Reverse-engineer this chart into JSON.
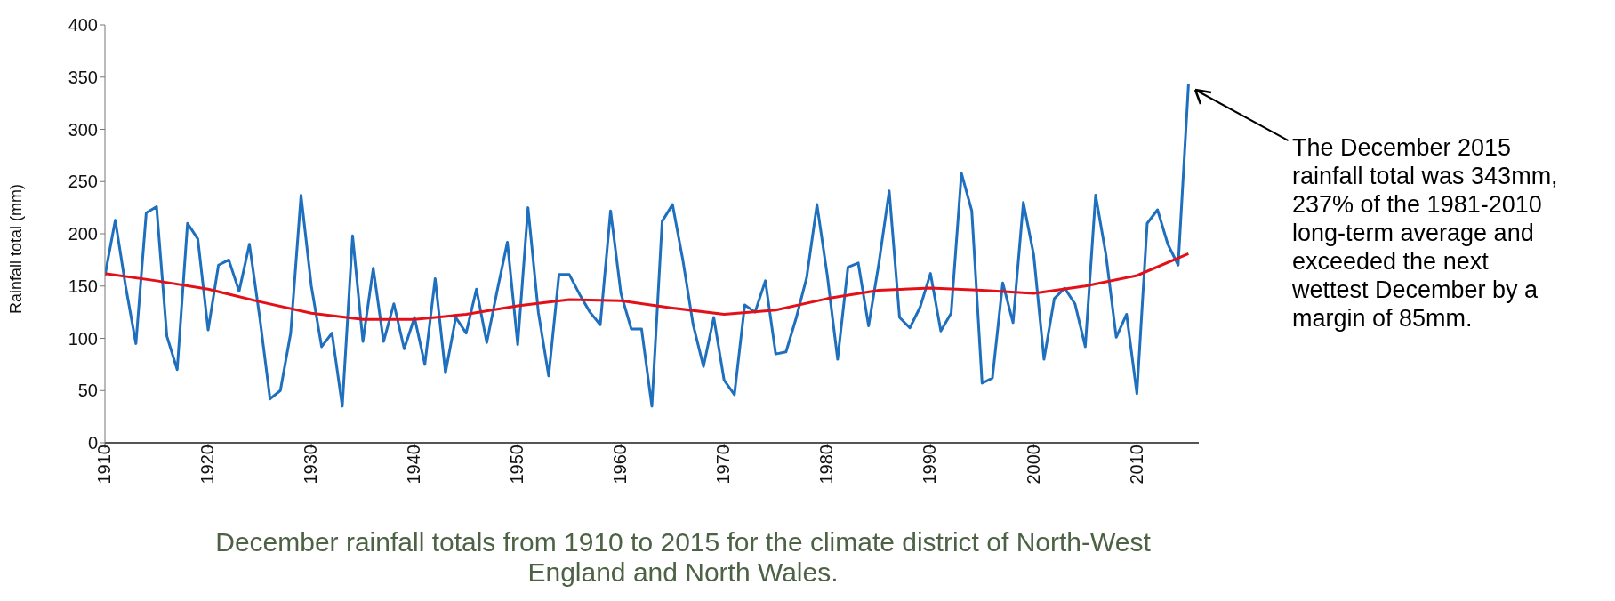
{
  "chart_data": {
    "type": "line",
    "ylabel": "Rainfall total (mm)",
    "xlim": [
      1910,
      2016
    ],
    "xticks": [
      1910,
      1920,
      1930,
      1940,
      1950,
      1960,
      1970,
      1980,
      1990,
      2000,
      2010
    ],
    "ylim": [
      0,
      400
    ],
    "yticks": [
      0,
      50,
      100,
      150,
      200,
      250,
      300,
      350,
      400
    ],
    "x": [
      1910,
      1911,
      1912,
      1913,
      1914,
      1915,
      1916,
      1917,
      1918,
      1919,
      1920,
      1921,
      1922,
      1923,
      1924,
      1925,
      1926,
      1927,
      1928,
      1929,
      1930,
      1931,
      1932,
      1933,
      1934,
      1935,
      1936,
      1937,
      1938,
      1939,
      1940,
      1941,
      1942,
      1943,
      1944,
      1945,
      1946,
      1947,
      1948,
      1949,
      1950,
      1951,
      1952,
      1953,
      1954,
      1955,
      1956,
      1957,
      1958,
      1959,
      1960,
      1961,
      1962,
      1963,
      1964,
      1965,
      1966,
      1967,
      1968,
      1969,
      1970,
      1971,
      1972,
      1973,
      1974,
      1975,
      1976,
      1977,
      1978,
      1979,
      1980,
      1981,
      1982,
      1983,
      1984,
      1985,
      1986,
      1987,
      1988,
      1989,
      1990,
      1991,
      1992,
      1993,
      1994,
      1995,
      1996,
      1997,
      1998,
      1999,
      2000,
      2001,
      2002,
      2003,
      2004,
      2005,
      2006,
      2007,
      2008,
      2009,
      2010,
      2011,
      2012,
      2013,
      2014,
      2015
    ],
    "series": [
      {
        "color": "#1f6fbf",
        "values": [
          160,
          213,
          150,
          95,
          220,
          226,
          102,
          70,
          210,
          195,
          108,
          170,
          175,
          145,
          190,
          120,
          42,
          50,
          105,
          237,
          150,
          92,
          105,
          35,
          198,
          97,
          167,
          97,
          133,
          90,
          120,
          75,
          157,
          67,
          120,
          105,
          147,
          96,
          145,
          192,
          94,
          225,
          125,
          64,
          161,
          161,
          142,
          125,
          113,
          222,
          143,
          109,
          109,
          35,
          212,
          228,
          175,
          113,
          73,
          120,
          60,
          46,
          132,
          125,
          155,
          85,
          87,
          120,
          158,
          228,
          160,
          80,
          168,
          172,
          112,
          172,
          241,
          120,
          110,
          130,
          162,
          107,
          124,
          258,
          222,
          57,
          62,
          153,
          115,
          230,
          180,
          80,
          138,
          148,
          133,
          92,
          237,
          180,
          101,
          123,
          47,
          210,
          223,
          190,
          170,
          343
        ]
      },
      {
        "color": "#e3101a",
        "x": [
          1910,
          1915,
          1920,
          1925,
          1930,
          1935,
          1940,
          1945,
          1950,
          1955,
          1960,
          1965,
          1970,
          1975,
          1980,
          1985,
          1990,
          1995,
          2000,
          2005,
          2010,
          2015
        ],
        "values": [
          162,
          155,
          147,
          135,
          124,
          118,
          118,
          123,
          131,
          137,
          136,
          129,
          123,
          127,
          138,
          146,
          148,
          146,
          143,
          150,
          160,
          181
        ]
      }
    ],
    "annotations": [
      {
        "text": "The December 2015 rainfall total was 343mm, 237% of the 1981-2010 long-term average and exceeded the next wettest December by a margin of 85mm."
      },
      "December rainfall totals from 1910 to 2015 for the climate district of North-West England and North Wales."
    ]
  }
}
